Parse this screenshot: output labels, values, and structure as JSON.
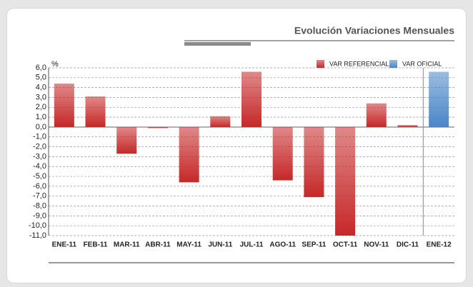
{
  "chart_data": {
    "type": "bar",
    "title": "Evolución Variaciones Mensuales",
    "y_label": "%",
    "categories": [
      "ENE-11",
      "FEB-11",
      "MAR-11",
      "ABR-11",
      "MAY-11",
      "JUN-11",
      "JUL-11",
      "AGO-11",
      "SEP-11",
      "OCT-11",
      "NOV-11",
      "DIC-11",
      "ENE-12"
    ],
    "series": [
      {
        "name": "VAR REFERENCIAL",
        "color": "#c62828",
        "values": [
          4.4,
          3.1,
          -2.7,
          -0.1,
          -5.6,
          1.1,
          5.6,
          -5.4,
          -7.1,
          -11.0,
          2.4,
          0.2,
          null
        ]
      },
      {
        "name": "VAR OFICIAL",
        "color": "#4a86c8",
        "values": [
          null,
          null,
          null,
          null,
          null,
          null,
          null,
          null,
          null,
          null,
          null,
          null,
          5.6
        ]
      }
    ],
    "ylim": [
      -11,
      6
    ],
    "yticks": [
      {
        "value": 6,
        "label": "6,0"
      },
      {
        "value": 5,
        "label": "5,0"
      },
      {
        "value": 4,
        "label": "4,0"
      },
      {
        "value": 3,
        "label": "3,0"
      },
      {
        "value": 2,
        "label": "2,0"
      },
      {
        "value": 1,
        "label": "1,0"
      },
      {
        "value": 0,
        "label": "0,0"
      },
      {
        "value": -1,
        "label": "-1,0"
      },
      {
        "value": -2,
        "label": "-2,0"
      },
      {
        "value": -3,
        "label": "-3,0"
      },
      {
        "value": -4,
        "label": "-4,0"
      },
      {
        "value": -5,
        "label": "-5,0"
      },
      {
        "value": -6,
        "label": "-6,0"
      },
      {
        "value": -7,
        "label": "-7,0"
      },
      {
        "value": -8,
        "label": "-8,0"
      },
      {
        "value": -9,
        "label": "-9,0"
      },
      {
        "value": -10,
        "label": "-10,0"
      },
      {
        "value": -11,
        "label": "-11,0"
      }
    ],
    "grid": true,
    "legend": "top-right"
  }
}
